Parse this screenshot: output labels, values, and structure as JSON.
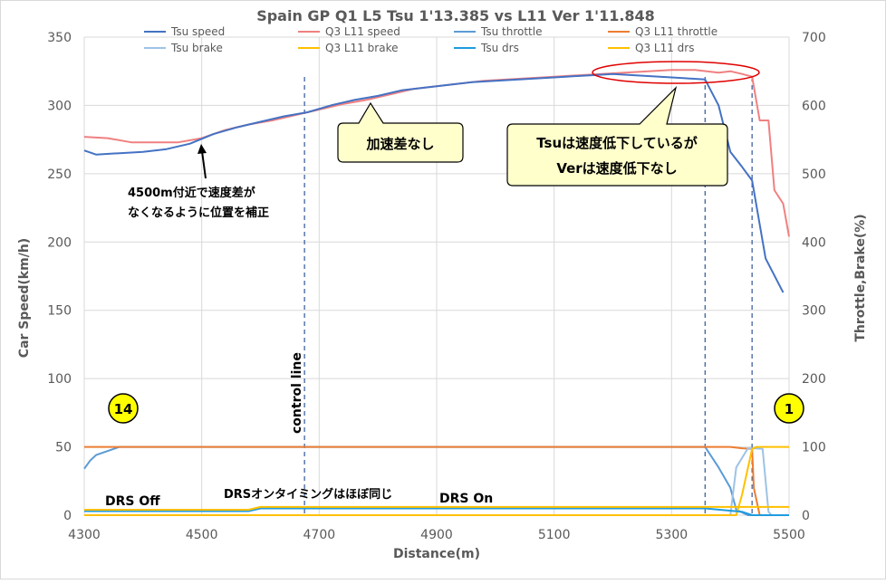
{
  "chart_data": {
    "type": "line",
    "title": "Spain GP Q1 L5 Tsu 1'13.385 vs L11 Ver 1'11.848",
    "xlabel": "Distance(m)",
    "ylabel": "Car Speed(km/h)",
    "y2label": "Throttle,Brake(%)",
    "xlim": [
      4300,
      5500
    ],
    "ylim": [
      0,
      350
    ],
    "y2lim": [
      0,
      700
    ],
    "xticks": [
      4300,
      4500,
      4700,
      4900,
      5100,
      5300,
      5500
    ],
    "yticks": [
      0,
      50,
      100,
      150,
      200,
      250,
      300,
      350
    ],
    "y2ticks": [
      0,
      100,
      200,
      300,
      400,
      500,
      600,
      700
    ],
    "grid": true,
    "legend_position": "top",
    "markers": [
      4675,
      5357,
      5437
    ],
    "series": [
      {
        "name": "Tsu speed",
        "color": "#4472c4",
        "axis": "left",
        "x": [
          4300,
          4320,
          4360,
          4400,
          4440,
          4480,
          4520,
          4560,
          4600,
          4640,
          4680,
          4720,
          4760,
          4800,
          4840,
          4880,
          4920,
          4960,
          5000,
          5040,
          5080,
          5120,
          5160,
          5200,
          5240,
          5280,
          5320,
          5357,
          5380,
          5400,
          5420,
          5437,
          5460,
          5490
        ],
        "y": [
          267,
          264,
          265,
          266,
          268,
          272,
          279,
          284,
          288,
          292,
          295,
          300,
          304,
          307,
          311,
          313,
          315,
          317,
          318,
          319,
          320,
          321,
          322,
          323,
          322,
          321,
          320,
          319,
          300,
          266,
          255,
          245,
          188,
          163
        ]
      },
      {
        "name": "Q3 L11 speed",
        "color": "#f08080",
        "axis": "left",
        "x": [
          4300,
          4340,
          4380,
          4420,
          4460,
          4500,
          4540,
          4580,
          4620,
          4660,
          4700,
          4740,
          4780,
          4820,
          4860,
          4900,
          4940,
          4980,
          5020,
          5060,
          5100,
          5140,
          5180,
          5220,
          5260,
          5300,
          5340,
          5380,
          5400,
          5420,
          5437,
          5450,
          5465,
          5475,
          5490,
          5500
        ],
        "y": [
          277,
          276,
          273,
          273,
          273,
          276,
          282,
          286,
          289,
          293,
          297,
          301,
          304,
          308,
          312,
          314,
          316,
          318,
          319,
          320,
          321,
          322,
          323,
          324,
          325,
          326,
          326,
          324,
          325,
          323,
          321,
          289,
          289,
          238,
          228,
          204
        ]
      },
      {
        "name": "Tsu throttle",
        "color": "#5b9bd5",
        "axis": "right",
        "x": [
          4300,
          4310,
          4320,
          4360,
          4380,
          5357,
          5380,
          5400,
          5410,
          5430,
          5500
        ],
        "y": [
          68,
          80,
          88,
          100,
          100,
          100,
          70,
          40,
          8,
          0,
          0
        ]
      },
      {
        "name": "Q3 L11 throttle",
        "color": "#ed7d31",
        "axis": "right",
        "x": [
          4300,
          5400,
          5420,
          5437,
          5440,
          5450,
          5500
        ],
        "y": [
          100,
          100,
          98,
          97,
          40,
          0,
          0
        ]
      },
      {
        "name": "Tsu brake",
        "color": "#9dc3e6",
        "axis": "right",
        "x": [
          4300,
          5390,
          5400,
          5410,
          5430,
          5440,
          5455,
          5465,
          5470,
          5500
        ],
        "y": [
          0,
          0,
          0,
          70,
          98,
          98,
          97,
          5,
          0,
          0
        ]
      },
      {
        "name": "Q3 L11 brake",
        "color": "#ffc000",
        "axis": "right",
        "x": [
          4300,
          5410,
          5420,
          5437,
          5445,
          5500
        ],
        "y": [
          0,
          0,
          30,
          97,
          100,
          100
        ]
      },
      {
        "name": "Tsu drs",
        "color": "#1f9bde",
        "axis": "right",
        "x": [
          4300,
          4580,
          4600,
          4640,
          4700,
          5357,
          5420,
          5437,
          5500
        ],
        "y": [
          6,
          6,
          10,
          10,
          10,
          10,
          5,
          0,
          0
        ]
      },
      {
        "name": "Q3 L11 drs",
        "color": "#ffc000",
        "axis": "right",
        "x": [
          4300,
          4580,
          4600,
          4700,
          5380,
          5400,
          5437,
          5460,
          5500
        ],
        "y": [
          8,
          8,
          12,
          12,
          12,
          12,
          12,
          12,
          12
        ]
      }
    ]
  },
  "annotations": {
    "control_line": "control line",
    "offset_note_1": "4500m付近で速度差が",
    "offset_note_2": "なくなるように位置を補正",
    "callout_accel": "加速差なし",
    "callout_drop_1": "Tsuは速度低下しているが",
    "callout_drop_2": "Verは速度低下なし",
    "drs_off": "DRS Off",
    "drs_timing": "DRSオンタイミングはほぼ同じ",
    "drs_on": "DRS On",
    "turn_start": "14",
    "turn_end": "1"
  }
}
